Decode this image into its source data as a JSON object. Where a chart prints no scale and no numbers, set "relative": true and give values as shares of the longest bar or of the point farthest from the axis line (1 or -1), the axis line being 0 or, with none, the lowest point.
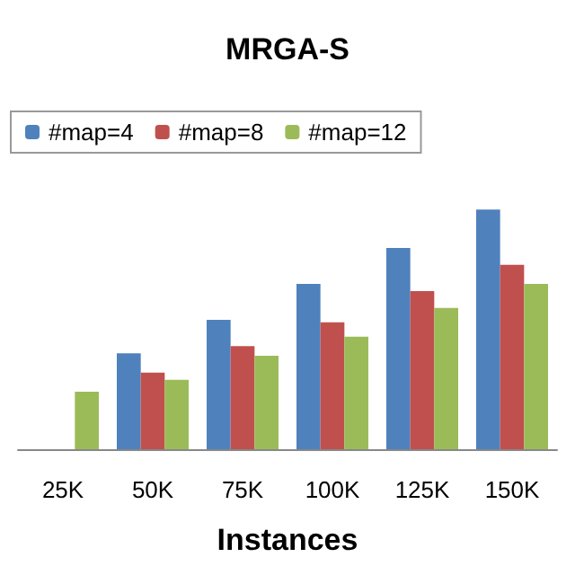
{
  "chart_data": {
    "type": "bar",
    "title": "MRGA-S",
    "xlabel": "Instances",
    "relative": true,
    "categories": [
      "25K",
      "50K",
      "75K",
      "100K",
      "125K",
      "150K"
    ],
    "series": [
      {
        "name": "#map=4",
        "color": "#4f81bd",
        "values": [
          null,
          0.4,
          0.54,
          0.69,
          0.84,
          1
        ]
      },
      {
        "name": "#map=8",
        "color": "#c0504d",
        "values": [
          null,
          0.32,
          0.43,
          0.53,
          0.66,
          0.77
        ]
      },
      {
        "name": "#map=12",
        "color": "#9bbb59",
        "values": [
          0.24,
          0.29,
          0.39,
          0.47,
          0.59,
          0.69
        ]
      }
    ],
    "legend": "top left"
  }
}
